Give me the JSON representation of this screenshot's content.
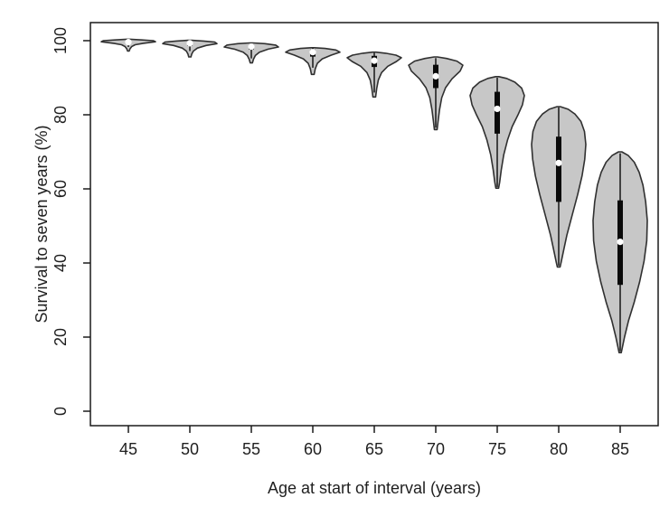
{
  "chart_data": {
    "type": "violin",
    "title": "",
    "xlabel": "Age at start of interval (years)",
    "ylabel": "Survival to seven years (%)",
    "x_tick_labels": [
      "45",
      "50",
      "55",
      "60",
      "65",
      "70",
      "75",
      "80",
      "85"
    ],
    "y_ticks": [
      0,
      20,
      40,
      60,
      80,
      100
    ],
    "ylim": [
      -4,
      105
    ],
    "grid": false,
    "legend": "none",
    "colors": {
      "violin_fill": "#c7c7c7",
      "violin_stroke": "#303030",
      "whisker": "#0a0a0a",
      "iqr_box": "#0a0a0a",
      "median_dot": "#ffffff",
      "axis": "#1a1a1a",
      "text": "#1f1f1f",
      "background": "#ffffff"
    },
    "series": [
      {
        "age": "45",
        "median": 99.6,
        "q1": 99.2,
        "q3": 99.9,
        "whisker_low": 98.3,
        "whisker_high": 100.2,
        "min": 97.2,
        "max": 100.4,
        "outline": [
          [
            100.4,
            0.06
          ],
          [
            100.2,
            0.5
          ],
          [
            100.0,
            0.92
          ],
          [
            99.7,
            1.0
          ],
          [
            99.3,
            0.55
          ],
          [
            98.9,
            0.25
          ],
          [
            98.4,
            0.12
          ],
          [
            97.8,
            0.06
          ],
          [
            97.2,
            0.03
          ]
        ]
      },
      {
        "age": "50",
        "median": 99.3,
        "q1": 98.6,
        "q3": 99.7,
        "whisker_low": 97.2,
        "whisker_high": 100.0,
        "min": 95.6,
        "max": 100.1,
        "outline": [
          [
            100.1,
            0.06
          ],
          [
            99.9,
            0.5
          ],
          [
            99.6,
            0.92
          ],
          [
            99.2,
            1.0
          ],
          [
            98.7,
            0.6
          ],
          [
            98.0,
            0.28
          ],
          [
            97.2,
            0.13
          ],
          [
            96.4,
            0.07
          ],
          [
            95.6,
            0.04
          ]
        ]
      },
      {
        "age": "55",
        "median": 98.4,
        "q1": 97.6,
        "q3": 99.0,
        "whisker_low": 95.2,
        "whisker_high": 99.3,
        "min": 94.0,
        "max": 99.4,
        "outline": [
          [
            99.4,
            0.06
          ],
          [
            99.2,
            0.5
          ],
          [
            98.8,
            0.9
          ],
          [
            98.3,
            1.0
          ],
          [
            97.7,
            0.62
          ],
          [
            96.9,
            0.3
          ],
          [
            96.0,
            0.15
          ],
          [
            95.0,
            0.08
          ],
          [
            94.0,
            0.04
          ]
        ]
      },
      {
        "age": "60",
        "median": 96.9,
        "q1": 95.7,
        "q3": 97.6,
        "whisker_low": 92.7,
        "whisker_high": 98.0,
        "min": 90.9,
        "max": 98.1,
        "outline": [
          [
            98.1,
            0.06
          ],
          [
            97.9,
            0.45
          ],
          [
            97.5,
            0.85
          ],
          [
            96.9,
            1.0
          ],
          [
            96.1,
            0.68
          ],
          [
            95.1,
            0.35
          ],
          [
            93.9,
            0.17
          ],
          [
            92.4,
            0.09
          ],
          [
            90.9,
            0.05
          ]
        ]
      },
      {
        "age": "65",
        "median": 94.6,
        "q1": 92.9,
        "q3": 95.9,
        "whisker_low": 86.0,
        "whisker_high": 96.7,
        "min": 84.8,
        "max": 96.9,
        "outline": [
          [
            96.9,
            0.06
          ],
          [
            96.6,
            0.42
          ],
          [
            96.1,
            0.8
          ],
          [
            95.4,
            1.0
          ],
          [
            94.4,
            0.82
          ],
          [
            93.1,
            0.5
          ],
          [
            91.4,
            0.27
          ],
          [
            89.4,
            0.15
          ],
          [
            87.1,
            0.09
          ],
          [
            84.8,
            0.05
          ]
        ]
      },
      {
        "age": "70",
        "median": 90.4,
        "q1": 87.2,
        "q3": 93.5,
        "whisker_low": 76.5,
        "whisker_high": 95.3,
        "min": 76.0,
        "max": 95.6,
        "outline": [
          [
            95.6,
            0.06
          ],
          [
            95.2,
            0.4
          ],
          [
            94.5,
            0.78
          ],
          [
            93.4,
            1.0
          ],
          [
            91.8,
            0.9
          ],
          [
            89.7,
            0.6
          ],
          [
            87.3,
            0.36
          ],
          [
            84.6,
            0.22
          ],
          [
            81.4,
            0.14
          ],
          [
            78.5,
            0.09
          ],
          [
            76.0,
            0.05
          ]
        ]
      },
      {
        "age": "75",
        "median": 81.6,
        "q1": 74.9,
        "q3": 86.2,
        "whisker_low": 60.5,
        "whisker_high": 90.0,
        "min": 60.2,
        "max": 90.3,
        "outline": [
          [
            90.3,
            0.06
          ],
          [
            89.8,
            0.35
          ],
          [
            88.8,
            0.65
          ],
          [
            87.2,
            0.9
          ],
          [
            85.2,
            1.0
          ],
          [
            82.7,
            0.93
          ],
          [
            79.9,
            0.76
          ],
          [
            76.8,
            0.55
          ],
          [
            73.2,
            0.38
          ],
          [
            69.2,
            0.24
          ],
          [
            65.2,
            0.15
          ],
          [
            61.8,
            0.09
          ],
          [
            60.2,
            0.05
          ]
        ]
      },
      {
        "age": "80",
        "median": 67.0,
        "q1": 56.5,
        "q3": 74.1,
        "whisker_low": 39.2,
        "whisker_high": 82.0,
        "min": 38.9,
        "max": 82.2,
        "outline": [
          [
            82.2,
            0.06
          ],
          [
            81.5,
            0.35
          ],
          [
            80.2,
            0.6
          ],
          [
            78.2,
            0.82
          ],
          [
            75.5,
            0.95
          ],
          [
            72.0,
            1.0
          ],
          [
            68.0,
            0.96
          ],
          [
            63.5,
            0.86
          ],
          [
            58.5,
            0.7
          ],
          [
            53.0,
            0.5
          ],
          [
            47.5,
            0.3
          ],
          [
            43.0,
            0.17
          ],
          [
            40.2,
            0.09
          ],
          [
            38.9,
            0.05
          ]
        ]
      },
      {
        "age": "85",
        "median": 45.7,
        "q1": 34.1,
        "q3": 56.9,
        "whisker_low": 16.2,
        "whisker_high": 69.6,
        "min": 15.8,
        "max": 70.0,
        "outline": [
          [
            70.0,
            0.06
          ],
          [
            69.0,
            0.3
          ],
          [
            67.2,
            0.52
          ],
          [
            64.5,
            0.7
          ],
          [
            61.0,
            0.84
          ],
          [
            56.5,
            0.94
          ],
          [
            51.5,
            1.0
          ],
          [
            46.0,
            0.98
          ],
          [
            40.5,
            0.88
          ],
          [
            35.0,
            0.72
          ],
          [
            29.5,
            0.52
          ],
          [
            24.5,
            0.31
          ],
          [
            20.0,
            0.16
          ],
          [
            17.2,
            0.08
          ],
          [
            15.8,
            0.04
          ]
        ]
      }
    ]
  }
}
